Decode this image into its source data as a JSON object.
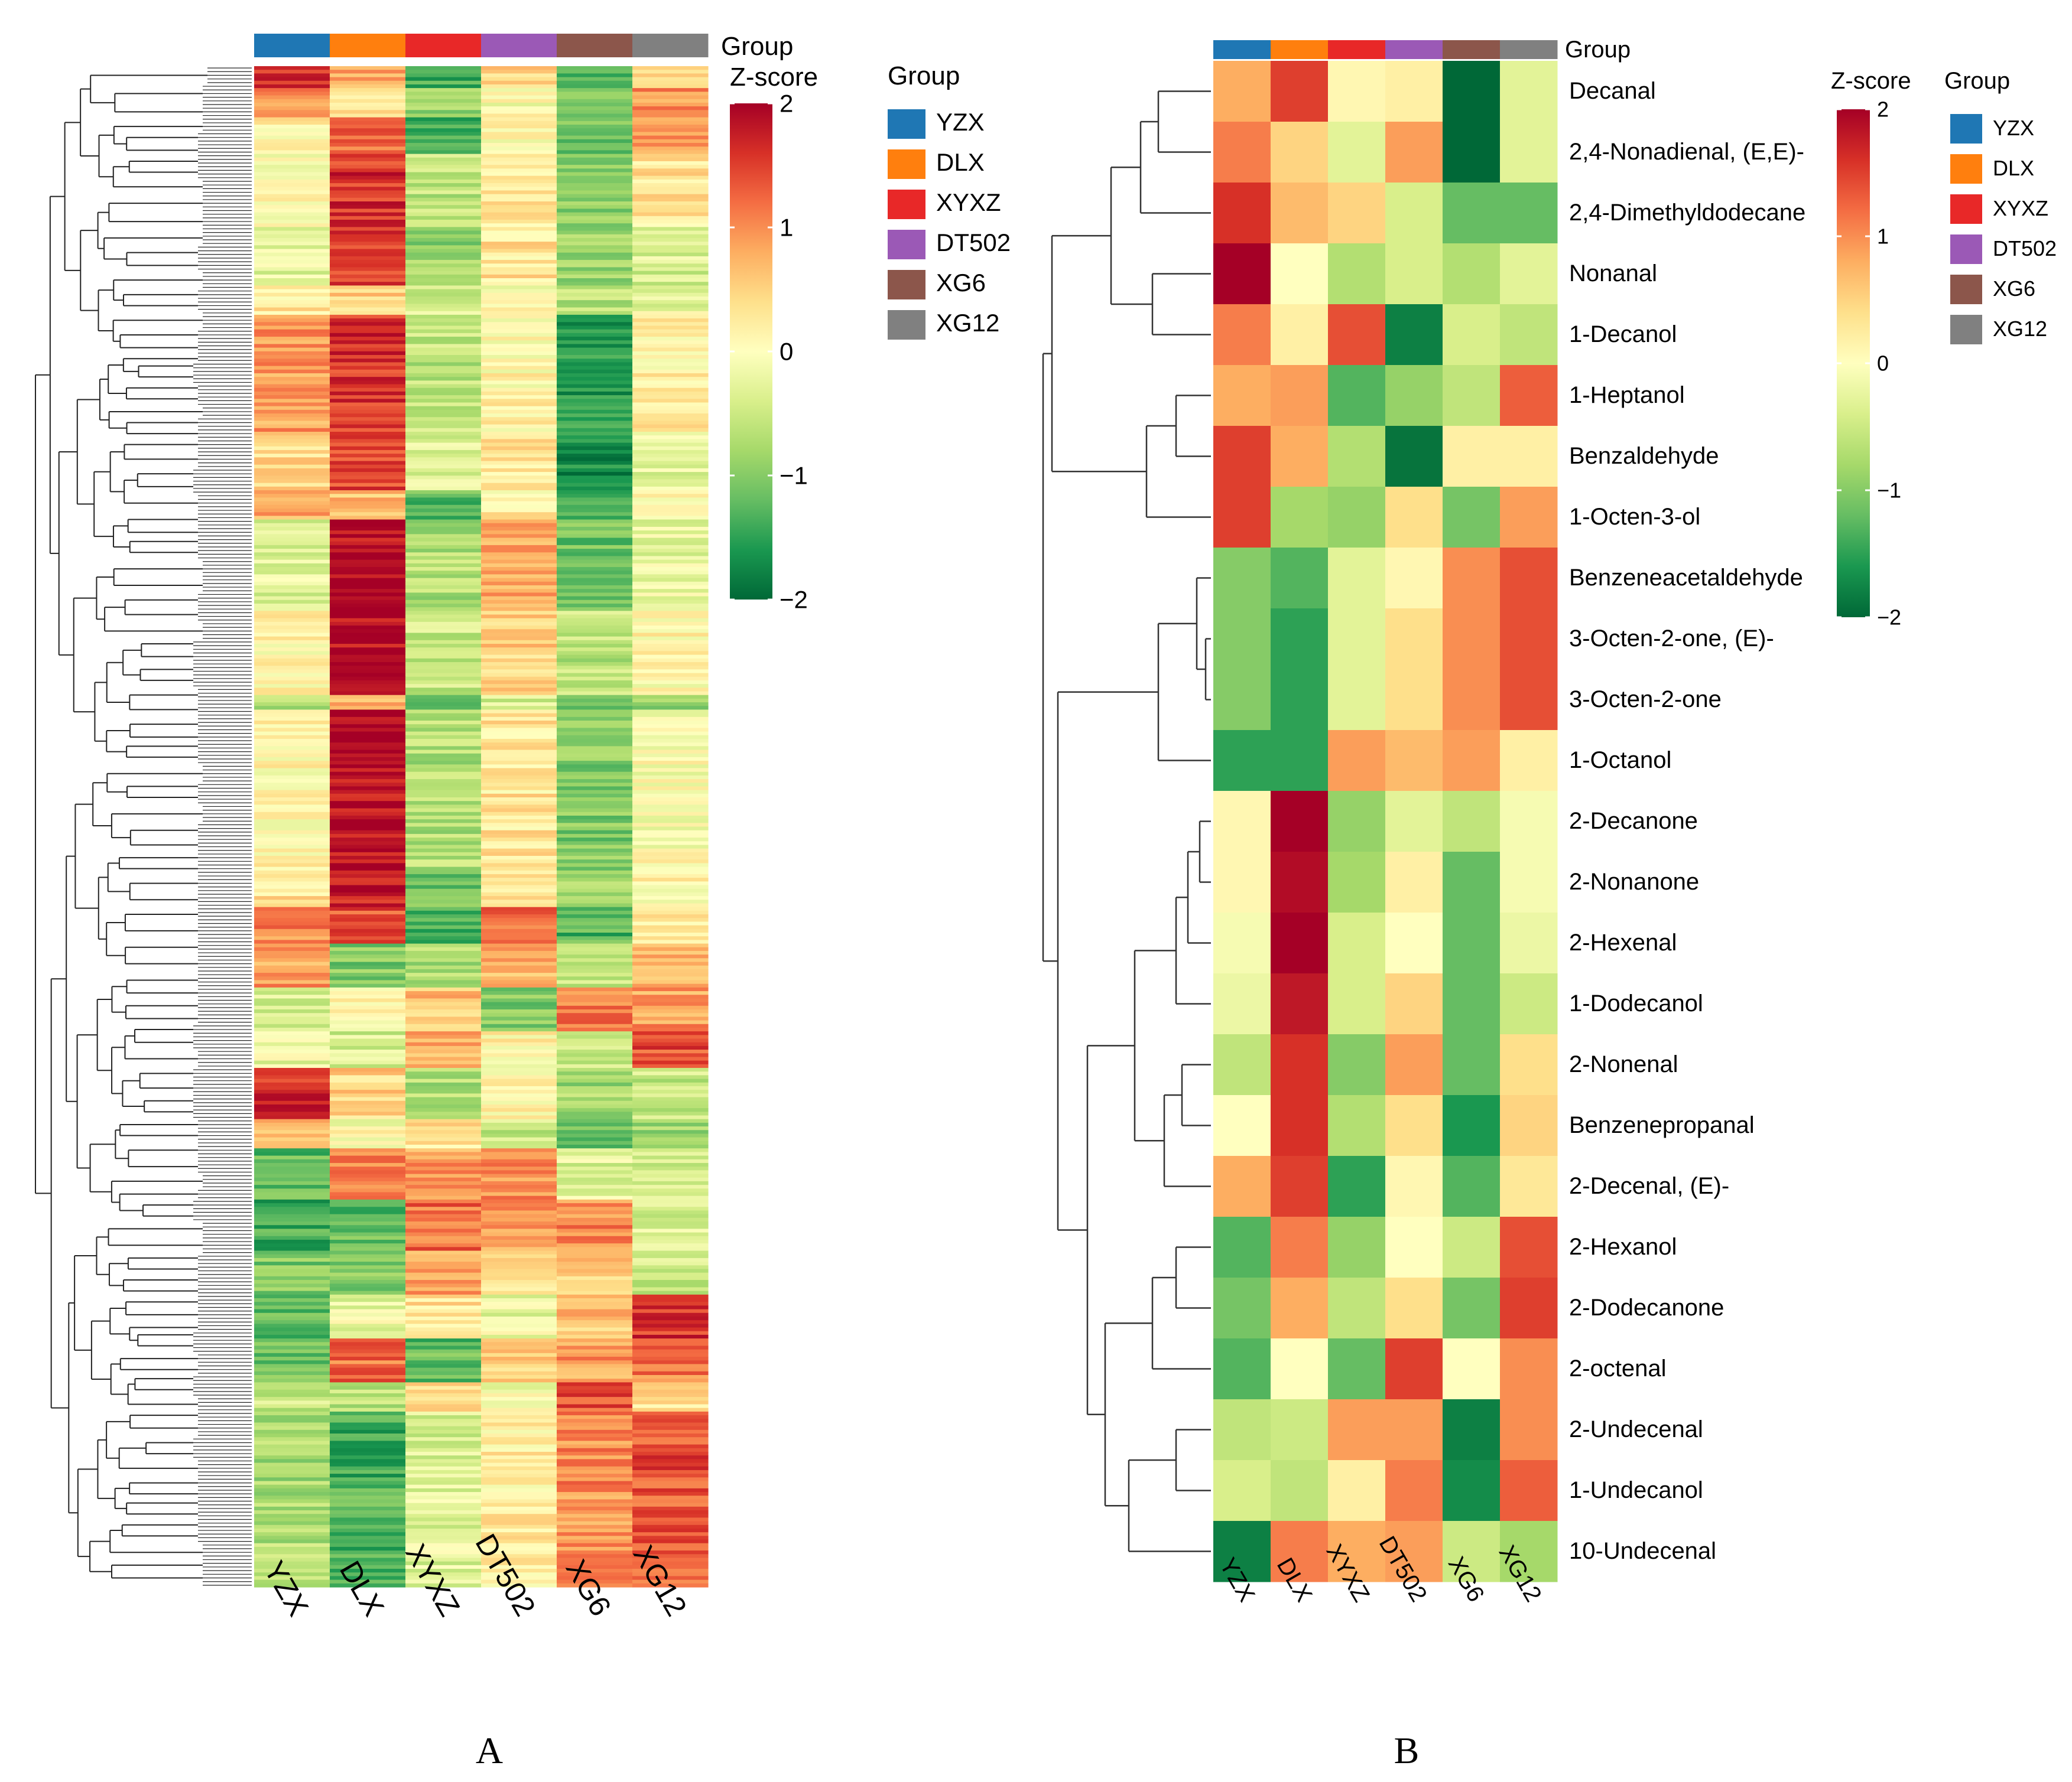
{
  "colors": {
    "scale": [
      "#006837",
      "#1a9850",
      "#66bd63",
      "#a6d96a",
      "#d9ef8b",
      "#ffffbf",
      "#fee08b",
      "#fdae61",
      "#f46d43",
      "#d73027",
      "#a50026"
    ],
    "groups": {
      "YZX": "#1f77b4",
      "DLX": "#ff7f0e",
      "XYXZ": "#e82828",
      "DT502": "#9b59b6",
      "XG6": "#8c564b",
      "XG12": "#808080"
    }
  },
  "panels": [
    {
      "letter": "A"
    },
    {
      "letter": "B"
    }
  ],
  "chart_data": [
    {
      "type": "heatmap",
      "panel": "A",
      "legend_titles": {
        "annotation": "Group",
        "scale": "Z-score"
      },
      "columns": [
        "YZX",
        "DLX",
        "XYXZ",
        "DT502",
        "XG6",
        "XG12"
      ],
      "scale_ticks": [
        2,
        1,
        0,
        -1,
        -2
      ],
      "scale_range": [
        -2,
        2
      ],
      "dendrogram": "rows",
      "rows_approx": 400,
      "blocks": [
        {
          "share": 0.015,
          "values": [
            1.6,
            0.8,
            -1.4,
            0.4,
            -1.3,
            0.4
          ]
        },
        {
          "share": 0.02,
          "values": [
            0.9,
            0.4,
            -0.8,
            0.0,
            -1.0,
            1.0
          ]
        },
        {
          "share": 0.025,
          "values": [
            0.2,
            1.2,
            -1.3,
            0.1,
            -1.2,
            0.8
          ]
        },
        {
          "share": 0.05,
          "values": [
            0.0,
            1.6,
            -0.6,
            0.2,
            -0.9,
            0.3
          ]
        },
        {
          "share": 0.04,
          "values": [
            -0.3,
            1.5,
            -0.9,
            0.3,
            -0.8,
            -0.4
          ]
        },
        {
          "share": 0.02,
          "values": [
            0.3,
            0.5,
            -0.4,
            0.0,
            -0.6,
            -0.2
          ]
        },
        {
          "share": 0.08,
          "values": [
            0.9,
            1.6,
            -0.6,
            0.1,
            -1.6,
            0.2
          ]
        },
        {
          "share": 0.04,
          "values": [
            0.4,
            1.5,
            -0.4,
            0.3,
            -1.7,
            -0.3
          ]
        },
        {
          "share": 0.02,
          "values": [
            0.8,
            0.7,
            -1.2,
            0.2,
            -1.2,
            0.1
          ]
        },
        {
          "share": 0.06,
          "values": [
            -0.3,
            1.9,
            -0.7,
            0.9,
            -1.1,
            -0.2
          ]
        },
        {
          "share": 0.06,
          "values": [
            0.1,
            1.9,
            -0.5,
            0.5,
            -0.6,
            0.1
          ]
        },
        {
          "share": 0.01,
          "values": [
            -0.6,
            0.7,
            -1.0,
            -0.4,
            -1.0,
            -0.9
          ]
        },
        {
          "share": 0.11,
          "values": [
            0.1,
            1.9,
            -0.7,
            0.3,
            -1.0,
            0.0
          ]
        },
        {
          "share": 0.025,
          "values": [
            0.3,
            1.8,
            -1.1,
            0.4,
            -0.9,
            0.1
          ]
        },
        {
          "share": 0.025,
          "values": [
            1.0,
            1.4,
            -1.3,
            1.3,
            -1.3,
            0.2
          ]
        },
        {
          "share": 0.03,
          "values": [
            0.9,
            -1.0,
            -0.8,
            0.8,
            -0.6,
            0.7
          ]
        },
        {
          "share": 0.03,
          "values": [
            -0.4,
            0.2,
            0.6,
            -1.0,
            1.1,
            0.9
          ]
        },
        {
          "share": 0.025,
          "values": [
            -0.2,
            -0.4,
            0.8,
            0.1,
            -0.5,
            1.4
          ]
        },
        {
          "share": 0.035,
          "values": [
            1.6,
            0.5,
            -0.7,
            0.1,
            -0.8,
            -0.5
          ]
        },
        {
          "share": 0.02,
          "values": [
            0.8,
            0.0,
            0.3,
            -0.5,
            -1.2,
            -0.8
          ]
        },
        {
          "share": 0.035,
          "values": [
            -1.2,
            1.0,
            0.9,
            1.0,
            -0.3,
            -0.4
          ]
        },
        {
          "share": 0.035,
          "values": [
            -1.4,
            -1.2,
            1.2,
            0.9,
            1.0,
            -0.4
          ]
        },
        {
          "share": 0.03,
          "values": [
            -1.0,
            -1.0,
            0.9,
            0.4,
            0.6,
            -0.5
          ]
        },
        {
          "share": 0.03,
          "values": [
            -1.2,
            -0.2,
            0.3,
            -0.2,
            0.6,
            1.6
          ]
        },
        {
          "share": 0.03,
          "values": [
            -1.1,
            1.2,
            -1.2,
            0.6,
            0.9,
            1.1
          ]
        },
        {
          "share": 0.02,
          "values": [
            -0.5,
            -0.6,
            0.4,
            -0.1,
            1.4,
            0.3
          ]
        },
        {
          "share": 0.05,
          "values": [
            -0.8,
            -1.4,
            -0.4,
            0.2,
            1.0,
            1.4
          ]
        },
        {
          "share": 0.07,
          "values": [
            -0.7,
            -1.3,
            -0.3,
            0.2,
            0.9,
            1.3
          ]
        }
      ],
      "axis_labels": [
        "YZX",
        "DLX",
        "XYXZ",
        "DT502",
        "XG6",
        "XG12"
      ]
    },
    {
      "type": "heatmap",
      "panel": "B",
      "legend_titles": {
        "annotation": "Group",
        "scale": "Z-score"
      },
      "columns": [
        "YZX",
        "DLX",
        "XYXZ",
        "DT502",
        "XG6",
        "XG12"
      ],
      "scale_ticks": [
        2,
        1,
        0,
        -1,
        -2
      ],
      "scale_range": [
        -2,
        2
      ],
      "rows": [
        "Decanal",
        "2,4-Nonadienal, (E,E)-",
        "2,4-Dimethyldodecane",
        "Nonanal",
        "1-Decanol",
        "1-Heptanol",
        "Benzaldehyde",
        "1-Octen-3-ol",
        "Benzeneacetaldehyde",
        "3-Octen-2-one, (E)-",
        "3-Octen-2-one",
        "1-Octanol",
        "2-Decanone",
        "2-Nonanone",
        "2-Hexenal",
        "1-Dodecanol",
        "2-Nonenal",
        "Benzenepropanal",
        "2-Decenal, (E)-",
        "2-Hexanol",
        "2-Dodecanone",
        "2-octenal",
        "2-Undecenal",
        "1-Undecanol",
        "10-Undecenal"
      ],
      "values": [
        [
          0.8,
          1.5,
          0.1,
          0.2,
          -2.0,
          -0.3
        ],
        [
          1.1,
          0.5,
          -0.3,
          0.9,
          -2.0,
          -0.3
        ],
        [
          1.6,
          0.7,
          0.5,
          -0.4,
          -1.2,
          -1.2
        ],
        [
          2.0,
          0.0,
          -0.7,
          -0.4,
          -0.7,
          -0.3
        ],
        [
          1.1,
          0.2,
          1.4,
          -1.8,
          -0.4,
          -0.6
        ],
        [
          0.8,
          0.9,
          -1.3,
          -0.9,
          -0.6,
          1.3
        ],
        [
          1.5,
          0.8,
          -0.7,
          -1.9,
          0.2,
          0.2
        ],
        [
          1.5,
          -0.8,
          -0.9,
          0.4,
          -1.1,
          0.9
        ],
        [
          -1.0,
          -1.3,
          -0.3,
          0.1,
          1.0,
          1.4
        ],
        [
          -1.0,
          -1.5,
          -0.3,
          0.4,
          1.0,
          1.4
        ],
        [
          -1.0,
          -1.5,
          -0.3,
          0.4,
          1.0,
          1.4
        ],
        [
          -1.5,
          -1.5,
          0.9,
          0.7,
          0.9,
          0.2
        ],
        [
          0.1,
          2.0,
          -0.9,
          -0.3,
          -0.6,
          -0.1
        ],
        [
          0.1,
          1.9,
          -0.8,
          0.2,
          -1.2,
          -0.1
        ],
        [
          -0.1,
          2.0,
          -0.4,
          0.0,
          -1.2,
          -0.2
        ],
        [
          -0.2,
          1.8,
          -0.4,
          0.5,
          -1.2,
          -0.5
        ],
        [
          -0.6,
          1.6,
          -1.0,
          0.9,
          -1.2,
          0.4
        ],
        [
          0.0,
          1.6,
          -0.7,
          0.4,
          -1.6,
          0.5
        ],
        [
          0.8,
          1.5,
          -1.5,
          0.1,
          -1.3,
          0.3
        ],
        [
          -1.3,
          1.1,
          -0.9,
          0.0,
          -0.5,
          1.4
        ],
        [
          -1.1,
          0.8,
          -0.6,
          0.4,
          -1.1,
          1.5
        ],
        [
          -1.3,
          0.0,
          -1.2,
          1.5,
          0.0,
          1.0
        ],
        [
          -0.6,
          -0.5,
          0.9,
          0.9,
          -1.8,
          1.0
        ],
        [
          -0.4,
          -0.6,
          0.2,
          1.1,
          -1.7,
          1.3
        ],
        [
          -1.8,
          1.1,
          0.8,
          0.9,
          -0.5,
          -0.8
        ]
      ],
      "axis_labels": [
        "YZX",
        "DLX",
        "XYXZ",
        "DT502",
        "XG6",
        "XG12"
      ]
    }
  ]
}
